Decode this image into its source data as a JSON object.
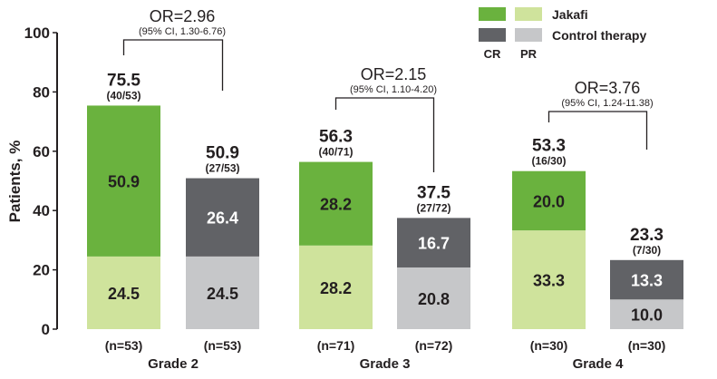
{
  "chart_data": {
    "type": "bar",
    "stacked": true,
    "ylabel": "Patients, %",
    "ylim": [
      0,
      100
    ],
    "yticks": [
      0,
      20,
      40,
      60,
      80,
      100
    ],
    "grid": false,
    "legend": {
      "placement": "top-right",
      "rows": [
        "Jakafi",
        "Control therapy"
      ],
      "columns": [
        "CR",
        "PR"
      ]
    },
    "colors": {
      "jakafi_cr": "#6ab23e",
      "jakafi_pr": "#cfe39c",
      "control_cr": "#616266",
      "control_pr": "#c6c7c9"
    },
    "groups": [
      {
        "label": "Grade 2",
        "or_label": "OR=2.96",
        "ci_label": "(95% CI, 1.30-6.76)",
        "bars": [
          {
            "arm": "Jakafi",
            "n_label": "(n=53)",
            "pr": 24.5,
            "cr": 50.9,
            "total": "75.5",
            "fraction": "(40/53)"
          },
          {
            "arm": "Control therapy",
            "n_label": "(n=53)",
            "pr": 24.5,
            "cr": 26.4,
            "total": "50.9",
            "fraction": "(27/53)"
          }
        ]
      },
      {
        "label": "Grade 3",
        "or_label": "OR=2.15",
        "ci_label": "(95% CI, 1.10-4.20)",
        "bars": [
          {
            "arm": "Jakafi",
            "n_label": "(n=71)",
            "pr": 28.2,
            "cr": 28.2,
            "total": "56.3",
            "fraction": "(40/71)"
          },
          {
            "arm": "Control therapy",
            "n_label": "(n=72)",
            "pr": 20.8,
            "cr": 16.7,
            "total": "37.5",
            "fraction": "(27/72)"
          }
        ]
      },
      {
        "label": "Grade 4",
        "or_label": "OR=3.76",
        "ci_label": "(95% CI, 1.24-11.38)",
        "bars": [
          {
            "arm": "Jakafi",
            "n_label": "(n=30)",
            "pr": 33.3,
            "cr": 20.0,
            "total": "53.3",
            "fraction": "(16/30)"
          },
          {
            "arm": "Control therapy",
            "n_label": "(n=30)",
            "pr": 10.0,
            "cr": 13.3,
            "total": "23.3",
            "fraction": "(7/30)"
          }
        ]
      }
    ]
  }
}
